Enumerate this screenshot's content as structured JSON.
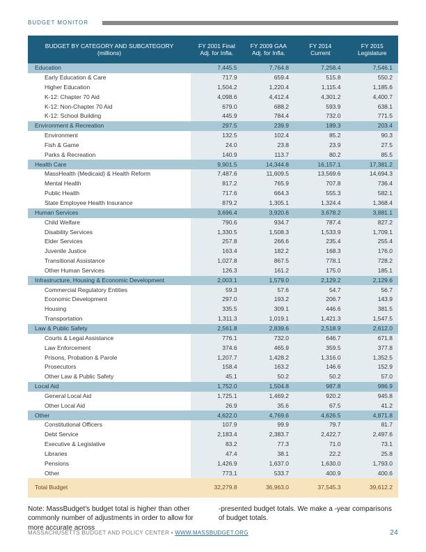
{
  "header": {
    "label": "BUDGET MONITOR"
  },
  "table": {
    "col_header_main": "BUDGET BY CATEGORY AND SUBCATEGORY",
    "col_header_sub": "(millions)",
    "columns": [
      "FY 2001 Final Adj. for Infla.",
      "FY 2009 GAA Adj. for Infla.",
      "FY 2014 Current",
      "FY 2015 Legislature"
    ],
    "groups": [
      {
        "name": "Education",
        "totals": [
          "7,445.5",
          "7,764.8",
          "7,258.4",
          "7,546.1"
        ],
        "rows": [
          [
            "Early Education & Care",
            "717.9",
            "659.4",
            "515.8",
            "550.2"
          ],
          [
            "Higher Education",
            "1,504.2",
            "1,220.4",
            "1,115.4",
            "1,185.6"
          ],
          [
            "K-12: Chapter 70 Aid",
            "4,098.6",
            "4,412.4",
            "4,301.2",
            "4,400.7"
          ],
          [
            "K-12: Non-Chapter 70 Aid",
            "679.0",
            "688.2",
            "593.9",
            "638.1"
          ],
          [
            "K-12: School Building",
            "445.9",
            "784.4",
            "732.0",
            "771.5"
          ]
        ]
      },
      {
        "name": "Environment & Recreation",
        "totals": [
          "297.5",
          "239.9",
          "189.3",
          "203.4"
        ],
        "rows": [
          [
            "Environment",
            "132.5",
            "102.4",
            "85.2",
            "90.3"
          ],
          [
            "Fish & Game",
            "24.0",
            "23.8",
            "23.9",
            "27.5"
          ],
          [
            "Parks & Recreation",
            "140.9",
            "113.7",
            "80.2",
            "85.5"
          ]
        ]
      },
      {
        "name": "Health Care",
        "totals": [
          "9,901.5",
          "14,344.8",
          "16,157.1",
          "17,381.2"
        ],
        "rows": [
          [
            "MassHealth (Medicaid) & Health Reform",
            "7,487.6",
            "11,609.5",
            "13,569.6",
            "14,694.3"
          ],
          [
            "Mental Health",
            "817.2",
            "765.9",
            "707.8",
            "736.4"
          ],
          [
            "Public Health",
            "717.6",
            "664.3",
            "555.3",
            "582.1"
          ],
          [
            "State Employee Health Insurance",
            "879.2",
            "1,305.1",
            "1,324.4",
            "1,368.4"
          ]
        ]
      },
      {
        "name": "Human Services",
        "totals": [
          "3,696.4",
          "3,920.6",
          "3,678.2",
          "3,881.1"
        ],
        "rows": [
          [
            "Child Welfare",
            "790.6",
            "934.7",
            "787.4",
            "827.2"
          ],
          [
            "Disability Services",
            "1,330.5",
            "1,508.3",
            "1,533.9",
            "1,709.1"
          ],
          [
            "Elder Services",
            "257.8",
            "266.6",
            "235.4",
            "255.4"
          ],
          [
            "Juvenile Justice",
            "163.4",
            "182.2",
            "168.3",
            "176.0"
          ],
          [
            "Transitional Assistance",
            "1,027.8",
            "867.5",
            "778.1",
            "728.2"
          ],
          [
            "Other Human Services",
            "126.3",
            "161.2",
            "175.0",
            "185.1"
          ]
        ]
      },
      {
        "name": "Infrastructure, Housing & Economic Development",
        "totals": [
          "2,003.1",
          "1,579.0",
          "2,129.2",
          "2,129.6"
        ],
        "rows": [
          [
            "Commercial Regulatory Entities",
            "59.3",
            "57.6",
            "54.7",
            "56.7"
          ],
          [
            "Economic Development",
            "297.0",
            "193.2",
            "206.7",
            "143.9"
          ],
          [
            "Housing",
            "335.5",
            "309.1",
            "446.6",
            "381.5"
          ],
          [
            "Transportation",
            "1,311.3",
            "1,019.1",
            "1,421.3",
            "1,547.5"
          ]
        ]
      },
      {
        "name": "Law & Public Safety",
        "totals": [
          "2,561.8",
          "2,839.6",
          "2,518.9",
          "2,612.0"
        ],
        "rows": [
          [
            "Courts & Legal Assistance",
            "776.1",
            "732.0",
            "646.7",
            "671.8"
          ],
          [
            "Law Enforcement",
            "374.6",
            "465.9",
            "359.5",
            "377.8"
          ],
          [
            "Prisons, Probation & Parole",
            "1,207.7",
            "1,428.2",
            "1,316.0",
            "1,352.5"
          ],
          [
            "Prosecutors",
            "158.4",
            "163.2",
            "146.6",
            "152.9"
          ],
          [
            "Other Law & Public Safety",
            "45.1",
            "50.2",
            "50.2",
            "57.0"
          ]
        ]
      },
      {
        "name": "Local Aid",
        "totals": [
          "1,752.0",
          "1,504.8",
          "987.8",
          "986.9"
        ],
        "rows": [
          [
            "General Local Aid",
            "1,725.1",
            "1,469.2",
            "920.2",
            "945.8"
          ],
          [
            "Other Local Aid",
            "26.9",
            "35.6",
            "67.5",
            "41.2"
          ]
        ]
      },
      {
        "name": "Other",
        "totals": [
          "4,622.0",
          "4,769.6",
          "4,626.5",
          "4,871.8"
        ],
        "rows": [
          [
            "Constitutional Officers",
            "107.9",
            "99.9",
            "79.7",
            "81.7"
          ],
          [
            "Debt Service",
            "2,183.4",
            "2,383.7",
            "2,422.7",
            "2,497.6"
          ],
          [
            "Executive & Legislative",
            "83.2",
            "77.3",
            "71.0",
            "73.1"
          ],
          [
            "Libraries",
            "47.4",
            "38.1",
            "22.2",
            "25.8"
          ],
          [
            "Pensions",
            "1,426.9",
            "1,637.0",
            "1,630.0",
            "1,793.0"
          ],
          [
            "Other",
            "773.1",
            "533.7",
            "400.9",
            "400.6"
          ]
        ]
      }
    ],
    "total_label": "Total Budget",
    "total_values": [
      "32,279.8",
      "36,963.0",
      "37,545.3",
      "39,612.2"
    ]
  },
  "note": {
    "left": "Note: MassBudget's budget total is higher than other commonly number of adjustments in order to allow for more accurate across",
    "right": "-presented budget totals. We make a -year comparisons of budget totals."
  },
  "footer": {
    "org": "MASSACHUSETTS BUDGET AND POLICY CENTER",
    "sep": "•",
    "url": "WWW.MASSBUDGET.ORG",
    "page": "24"
  }
}
